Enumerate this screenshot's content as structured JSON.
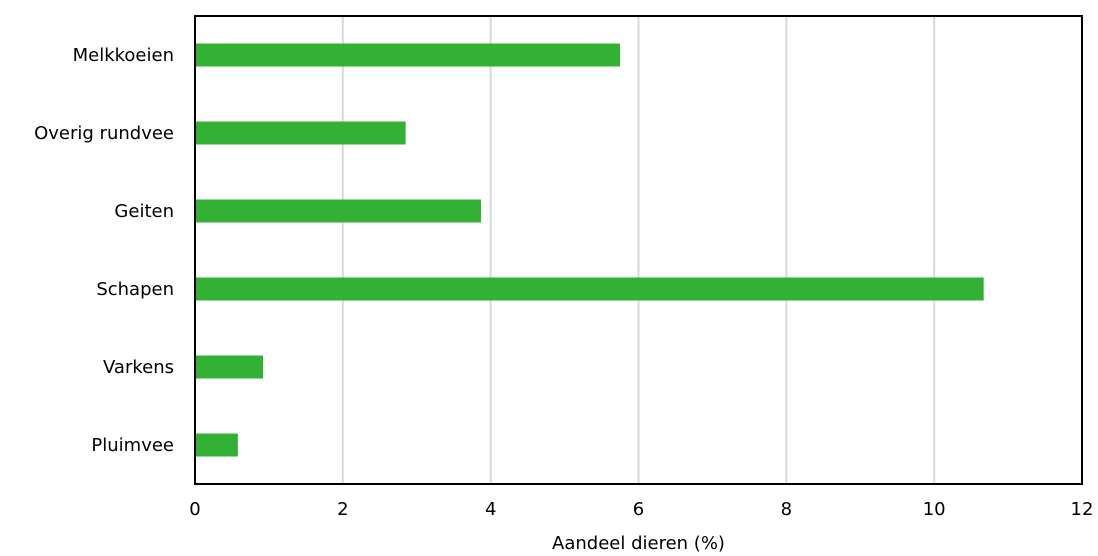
{
  "chart_data": {
    "type": "bar",
    "orientation": "horizontal",
    "categories": [
      "Melkkoeien",
      "Overig rundvee",
      "Geiten",
      "Schapen",
      "Varkens",
      "Pluimvee"
    ],
    "values": [
      5.75,
      2.85,
      3.87,
      10.67,
      0.92,
      0.58
    ],
    "title": "",
    "xlabel": "Aandeel dieren (%)",
    "ylabel": "",
    "xlim": [
      0,
      12
    ],
    "xticks": [
      "0",
      "2",
      "4",
      "6",
      "8",
      "10",
      "12"
    ],
    "grid": true,
    "legend": "none",
    "colors": {
      "bar": "#33b135",
      "grid": "#d9d9d9",
      "frame": "#000000"
    }
  }
}
